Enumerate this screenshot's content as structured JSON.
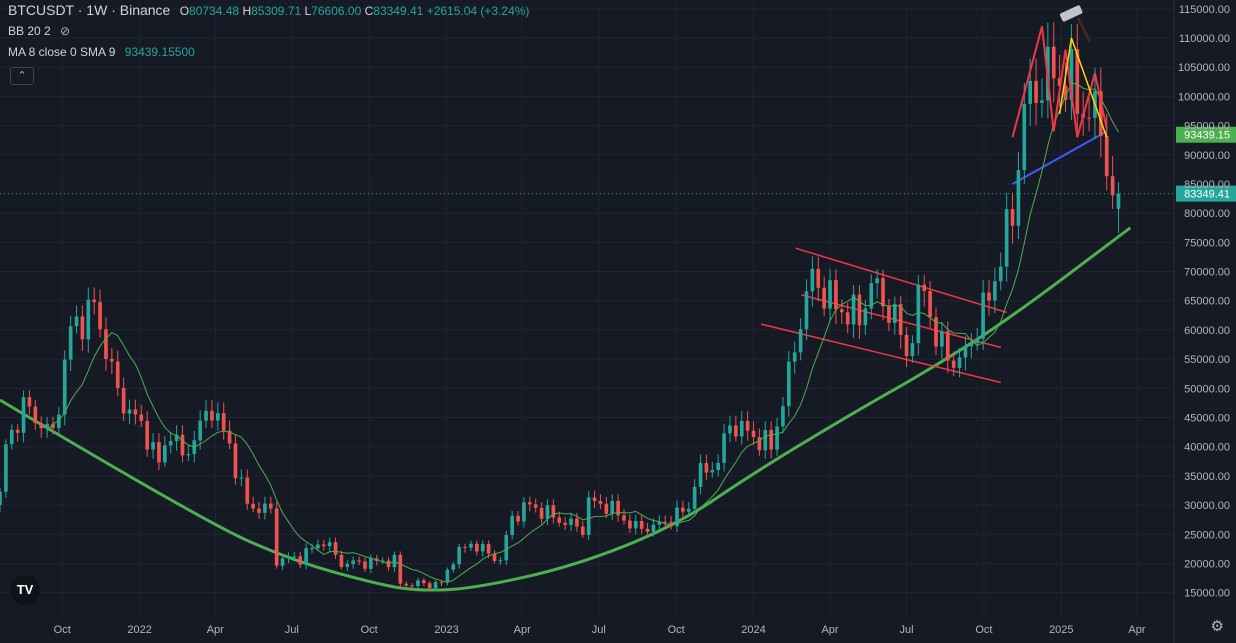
{
  "header": {
    "symbol": "BTCUSDT · 1W · Binance",
    "open_label": "O",
    "open": "80734.48",
    "high_label": "H",
    "high": "85309.71",
    "low_label": "L",
    "low": "76606.00",
    "close_label": "C",
    "close": "83349.41",
    "change": "+2615.04 (+3.24%)",
    "bb_label": "BB 20 2",
    "ma_label": "MA 8 close 0 SMA 9",
    "ma_value": "93439.15500"
  },
  "colors": {
    "background": "#161a25",
    "grid": "#1f2433",
    "up": "#26a69a",
    "down": "#ef5350",
    "ma": "#4caf50",
    "curve": "#4caf50",
    "channel": "#f23645",
    "yellow": "#ffd600",
    "blue": "#3d5afe",
    "text": "#b2b5be"
  },
  "chart_data": {
    "type": "candlestick",
    "symbol": "BTCUSDT",
    "interval": "1W",
    "exchange": "Binance",
    "y_ticks": [
      15000,
      20000,
      25000,
      30000,
      35000,
      40000,
      45000,
      50000,
      55000,
      60000,
      65000,
      70000,
      75000,
      80000,
      85000,
      90000,
      95000,
      100000,
      105000,
      110000,
      115000
    ],
    "y_tick_labels": [
      "15000.00",
      "20000.00",
      "25000.00",
      "30000.00",
      "35000.00",
      "40000.00",
      "45000.00",
      "50000.00",
      "55000.00",
      "60000.00",
      "65000.00",
      "70000.00",
      "75000.00",
      "80000.00",
      "85000.00",
      "90000.00",
      "95000.00",
      "100000.00",
      "105000.00",
      "110000.00",
      "115000.00"
    ],
    "ylim": [
      11000,
      116000
    ],
    "x_ticks": [
      {
        "label": "Oct",
        "date": "2021-10-01"
      },
      {
        "label": "2022",
        "date": "2022-01-01"
      },
      {
        "label": "Apr",
        "date": "2022-04-01"
      },
      {
        "label": "Jul",
        "date": "2022-07-01"
      },
      {
        "label": "Oct",
        "date": "2022-10-01"
      },
      {
        "label": "2023",
        "date": "2023-01-01"
      },
      {
        "label": "Apr",
        "date": "2023-04-01"
      },
      {
        "label": "Jul",
        "date": "2023-07-01"
      },
      {
        "label": "Oct",
        "date": "2023-10-01"
      },
      {
        "label": "2024",
        "date": "2024-01-01"
      },
      {
        "label": "Apr",
        "date": "2024-04-01"
      },
      {
        "label": "Jul",
        "date": "2024-07-01"
      },
      {
        "label": "Oct",
        "date": "2024-10-01"
      },
      {
        "label": "2025",
        "date": "2025-01-01"
      },
      {
        "label": "Apr",
        "date": "2025-04-01"
      }
    ],
    "xlim": [
      "2021-07-19",
      "2025-05-15"
    ],
    "first_candle": "2021-07-19",
    "price_anchors": [
      [
        "2021-07-19",
        31500
      ],
      [
        "2021-07-26",
        40000
      ],
      [
        "2021-08-16",
        47000
      ],
      [
        "2021-09-06",
        44000
      ],
      [
        "2021-09-20",
        42000
      ],
      [
        "2021-10-11",
        60000
      ],
      [
        "2021-11-08",
        64000
      ],
      [
        "2021-11-22",
        57000
      ],
      [
        "2021-12-06",
        49000
      ],
      [
        "2022-01-10",
        42000
      ],
      [
        "2022-01-24",
        37000
      ],
      [
        "2022-02-07",
        43000
      ],
      [
        "2022-02-21",
        38000
      ],
      [
        "2022-03-28",
        47000
      ],
      [
        "2022-04-18",
        40000
      ],
      [
        "2022-05-09",
        30000
      ],
      [
        "2022-06-06",
        29000
      ],
      [
        "2022-06-13",
        20500
      ],
      [
        "2022-07-11",
        21000
      ],
      [
        "2022-08-08",
        24000
      ],
      [
        "2022-08-29",
        20000
      ],
      [
        "2022-09-12",
        20000
      ],
      [
        "2022-10-31",
        20500
      ],
      [
        "2022-11-07",
        16500
      ],
      [
        "2022-12-26",
        16500
      ],
      [
        "2023-01-09",
        21000
      ],
      [
        "2023-01-30",
        23500
      ],
      [
        "2023-03-06",
        20500
      ],
      [
        "2023-03-20",
        28000
      ],
      [
        "2023-04-10",
        30000
      ],
      [
        "2023-05-01",
        28500
      ],
      [
        "2023-05-22",
        27000
      ],
      [
        "2023-06-12",
        26000
      ],
      [
        "2023-06-19",
        30500
      ],
      [
        "2023-07-10",
        30000
      ],
      [
        "2023-08-14",
        26000
      ],
      [
        "2023-09-11",
        26500
      ],
      [
        "2023-10-16",
        29500
      ],
      [
        "2023-10-23",
        34500
      ],
      [
        "2023-11-20",
        37500
      ],
      [
        "2023-12-04",
        44000
      ],
      [
        "2023-12-18",
        43000
      ],
      [
        "2024-01-22",
        40000
      ],
      [
        "2024-02-12",
        52000
      ],
      [
        "2024-02-26",
        62000
      ],
      [
        "2024-03-11",
        69000
      ],
      [
        "2024-04-08",
        64000
      ],
      [
        "2024-05-06",
        62000
      ],
      [
        "2024-05-20",
        68000
      ],
      [
        "2024-06-17",
        62000
      ],
      [
        "2024-07-01",
        56000
      ],
      [
        "2024-07-22",
        68000
      ],
      [
        "2024-08-05",
        58000
      ],
      [
        "2024-09-02",
        54000
      ],
      [
        "2024-09-30",
        63000
      ],
      [
        "2024-10-14",
        69000
      ],
      [
        "2024-11-04",
        80000
      ],
      [
        "2024-11-18",
        98000
      ],
      [
        "2024-12-16",
        104000
      ],
      [
        "2025-01-13",
        102000
      ],
      [
        "2025-01-27",
        97500
      ],
      [
        "2025-02-17",
        96000
      ],
      [
        "2025-03-03",
        80700
      ],
      [
        "2025-03-10",
        83349
      ]
    ],
    "last_candle": {
      "date": "2025-03-10",
      "open": 80734.48,
      "high": 85309.71,
      "low": 76606.0,
      "close": 83349.41
    },
    "ma": {
      "label": "MA 8 close 0 SMA 9",
      "last_value": 93439.155
    },
    "drawings": {
      "support_curve": [
        [
          "2021-07-19",
          48000
        ],
        [
          "2022-03-15",
          27500
        ],
        [
          "2022-07-01",
          20500
        ],
        [
          "2022-10-15",
          16300
        ],
        [
          "2022-12-01",
          15300
        ],
        [
          "2023-02-01",
          15700
        ],
        [
          "2023-06-01",
          19500
        ],
        [
          "2023-10-01",
          26500
        ],
        [
          "2024-01-01",
          35500
        ],
        [
          "2024-05-01",
          46000
        ],
        [
          "2024-08-01",
          53500
        ],
        [
          "2024-11-01",
          62000
        ],
        [
          "2025-03-24",
          77500
        ]
      ],
      "channel_upper": [
        [
          "2024-02-20",
          74000
        ],
        [
          "2024-10-28",
          63000
        ]
      ],
      "channel_middle": [
        [
          "2024-02-27",
          66000
        ],
        [
          "2024-10-21",
          57000
        ]
      ],
      "channel_lower": [
        [
          "2024-01-10",
          61000
        ],
        [
          "2024-10-21",
          51000
        ]
      ],
      "blue_line": [
        [
          "2024-11-04",
          85000
        ],
        [
          "2025-02-24",
          94000
        ]
      ]
    }
  }
}
